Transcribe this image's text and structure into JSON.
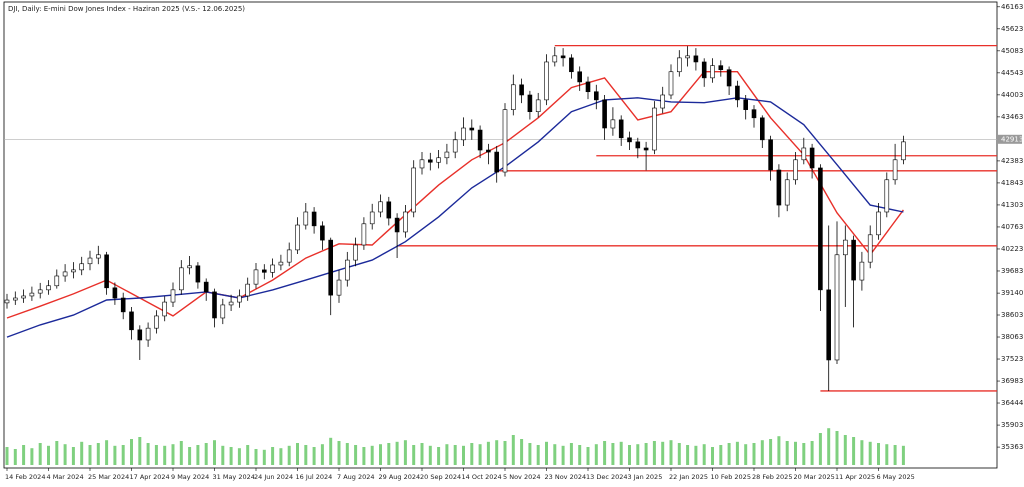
{
  "chart_data": {
    "type": "candlestick",
    "title": "DJI, Daily: E-mini Dow Jones Index - Haziran 2025 (V.S.- 12.06.2025)",
    "categories": [
      "14 Feb 2024",
      null,
      null,
      null,
      null,
      "4 Mar 2024",
      null,
      null,
      null,
      null,
      "25 Mar 2024",
      null,
      null,
      null,
      null,
      "17 Apr 2024",
      null,
      null,
      null,
      null,
      "9 May 2024",
      null,
      null,
      null,
      null,
      "31 May 2024",
      null,
      null,
      null,
      null,
      "24 Jun 2024",
      null,
      null,
      null,
      null,
      "16 Jul 2024",
      null,
      null,
      null,
      null,
      "7 Aug 2024",
      null,
      null,
      null,
      null,
      "29 Aug 2024",
      null,
      null,
      null,
      null,
      "20 Sep 2024",
      null,
      null,
      null,
      null,
      "14 Oct 2024",
      null,
      null,
      null,
      null,
      "5 Nov 2024",
      null,
      null,
      null,
      null,
      "23 Nov 2024",
      null,
      null,
      null,
      null,
      "13 Dec 2024",
      null,
      null,
      null,
      null,
      "3 Jan 2025",
      null,
      null,
      null,
      null,
      "22 Jan 2025",
      null,
      null,
      null,
      null,
      "10 Feb 2025",
      null,
      null,
      null,
      null,
      "28 Feb 2025",
      null,
      null,
      null,
      null,
      "20 Mar 2025",
      null,
      null,
      null,
      null,
      "11 Apr 2025",
      null,
      null,
      null,
      null,
      "6 May 2025",
      null,
      null,
      null
    ],
    "open": [
      38900,
      38970,
      39020,
      39070,
      39140,
      39220,
      39320,
      39560,
      39660,
      39710,
      39860,
      40000,
      40080,
      39270,
      39020,
      38680,
      38240,
      37990,
      38280,
      38580,
      38920,
      39220,
      39760,
      39810,
      39410,
      39170,
      38530,
      38850,
      38920,
      39070,
      39360,
      39710,
      39650,
      39830,
      39900,
      40200,
      40810,
      41130,
      40790,
      40440,
      39090,
      39460,
      39950,
      40320,
      40840,
      41130,
      41380,
      40980,
      40640,
      41130,
      42210,
      42410,
      42350,
      42460,
      42600,
      42900,
      43190,
      43140,
      42650,
      42600,
      42110,
      43640,
      44250,
      44000,
      43590,
      43880,
      44810,
      44960,
      44910,
      44570,
      44320,
      44080,
      43880,
      43190,
      43390,
      42950,
      42850,
      42700,
      42650,
      43680,
      44000,
      44570,
      44910,
      44960,
      44810,
      44420,
      44720,
      44620,
      44220,
      43880,
      43640,
      43440,
      42900,
      42160,
      41300,
      41920,
      42410,
      42700,
      42210,
      39220,
      37500,
      40080,
      40440,
      39460,
      39900,
      40570,
      41130,
      41920,
      42410
    ],
    "high": [
      39120,
      39180,
      39230,
      39300,
      39390,
      39460,
      39720,
      39850,
      39900,
      40030,
      40180,
      40300,
      40150,
      39400,
      39150,
      38800,
      38350,
      38420,
      38720,
      39060,
      39400,
      39950,
      40050,
      39900,
      39500,
      39250,
      39000,
      39100,
      39230,
      39520,
      39880,
      39850,
      39990,
      40080,
      40380,
      41000,
      41350,
      41250,
      40900,
      40500,
      39700,
      40150,
      40500,
      41000,
      41330,
      41560,
      41500,
      41100,
      41300,
      42400,
      42600,
      42580,
      42650,
      42800,
      43100,
      43450,
      43400,
      43250,
      42800,
      42750,
      43800,
      44500,
      44400,
      44100,
      44050,
      45000,
      45180,
      45150,
      45000,
      44700,
      44450,
      44250,
      44000,
      43700,
      43500,
      43100,
      42950,
      42850,
      43850,
      44200,
      44750,
      45100,
      45200,
      45150,
      44900,
      44900,
      44850,
      44700,
      44350,
      44000,
      43750,
      43500,
      43000,
      42300,
      42100,
      42600,
      42950,
      42800,
      42300,
      40800,
      40900,
      40800,
      40550,
      40150,
      40800,
      41350,
      42100,
      42800,
      43000
    ],
    "low": [
      38760,
      38850,
      38900,
      38950,
      39010,
      39100,
      39250,
      39420,
      39500,
      39580,
      39700,
      39850,
      39100,
      38850,
      38500,
      38000,
      37500,
      37820,
      38150,
      38450,
      38800,
      39100,
      39600,
      39250,
      38950,
      38300,
      38380,
      38700,
      38780,
      38950,
      39250,
      39480,
      39520,
      39700,
      39800,
      40100,
      40700,
      40600,
      40200,
      38600,
      38900,
      39300,
      39800,
      40200,
      40700,
      41000,
      40800,
      40000,
      40500,
      41000,
      42050,
      42150,
      42200,
      42300,
      42450,
      42750,
      42900,
      42450,
      42300,
      41850,
      42000,
      43500,
      43800,
      43400,
      43450,
      43750,
      44700,
      44700,
      44400,
      44100,
      43900,
      43650,
      42900,
      43000,
      42750,
      42650,
      42450,
      42150,
      42550,
      43550,
      43900,
      44450,
      44700,
      44600,
      44200,
      44300,
      44450,
      44000,
      43700,
      43400,
      43200,
      42700,
      41900,
      41000,
      41150,
      41800,
      42300,
      41950,
      38700,
      36740,
      37400,
      38800,
      38300,
      39200,
      39750,
      40450,
      41000,
      41800,
      42300
    ],
    "close": [
      38970,
      39020,
      39070,
      39140,
      39220,
      39320,
      39560,
      39660,
      39710,
      39860,
      40000,
      40080,
      39270,
      39020,
      38680,
      38240,
      37990,
      38280,
      38580,
      38920,
      39220,
      39760,
      39810,
      39410,
      39170,
      38530,
      38850,
      38920,
      39070,
      39360,
      39710,
      39650,
      39830,
      39900,
      40200,
      40810,
      41130,
      40790,
      40440,
      39090,
      39460,
      39950,
      40320,
      40840,
      41130,
      41380,
      40980,
      40640,
      41130,
      42210,
      42410,
      42350,
      42460,
      42600,
      42900,
      43190,
      43140,
      42650,
      42600,
      42110,
      43640,
      44250,
      44000,
      43590,
      43880,
      44810,
      44960,
      44910,
      44570,
      44320,
      44080,
      43880,
      43190,
      43390,
      42950,
      42850,
      42700,
      42650,
      43680,
      44000,
      44570,
      44910,
      44960,
      44810,
      44420,
      44720,
      44620,
      44220,
      43880,
      43640,
      43440,
      42900,
      42160,
      41300,
      41920,
      42410,
      42700,
      42210,
      39220,
      37500,
      40080,
      40440,
      39460,
      39900,
      40570,
      41130,
      41920,
      42410,
      42850
    ],
    "up_color": "#ffffff",
    "down_color": "#000000",
    "volume": {
      "color": "#7fd07f",
      "values": [
        45,
        40,
        50,
        42,
        55,
        48,
        60,
        52,
        45,
        58,
        50,
        55,
        62,
        48,
        50,
        65,
        70,
        55,
        50,
        48,
        52,
        60,
        45,
        50,
        55,
        62,
        48,
        45,
        42,
        50,
        40,
        38,
        45,
        42,
        48,
        55,
        50,
        45,
        52,
        68,
        60,
        55,
        50,
        45,
        48,
        52,
        55,
        58,
        62,
        50,
        55,
        48,
        45,
        52,
        50,
        48,
        55,
        52,
        58,
        62,
        60,
        75,
        65,
        55,
        50,
        58,
        52,
        48,
        55,
        50,
        45,
        52,
        60,
        55,
        58,
        50,
        52,
        55,
        60,
        58,
        62,
        55,
        50,
        48,
        52,
        45,
        50,
        55,
        58,
        52,
        55,
        62,
        65,
        72,
        60,
        58,
        55,
        60,
        80,
        92,
        85,
        75,
        70,
        62,
        58,
        55,
        52,
        50,
        48
      ]
    },
    "y2lim": [
      0,
      100
    ],
    "series": [
      {
        "color": "#e8302a",
        "x": [
          0,
          4,
          8,
          12,
          16,
          20,
          24,
          28,
          32,
          36,
          40,
          44,
          48,
          52,
          56,
          60,
          64,
          68,
          72,
          76,
          80,
          84,
          88,
          92,
          96,
          100,
          104,
          108
        ],
        "values": [
          38530,
          38820,
          39120,
          39460,
          39020,
          38580,
          39170,
          39020,
          39460,
          40000,
          40350,
          40320,
          41060,
          41790,
          42410,
          42830,
          43440,
          44180,
          44420,
          43390,
          43590,
          44570,
          44570,
          43440,
          42530,
          41110,
          40080,
          41180
        ]
      },
      {
        "color": "#1c2a9a",
        "x": [
          0,
          4,
          8,
          12,
          16,
          20,
          24,
          28,
          32,
          36,
          40,
          44,
          48,
          52,
          56,
          60,
          64,
          68,
          72,
          76,
          80,
          84,
          88,
          92,
          96,
          100,
          104,
          108
        ],
        "values": [
          38060,
          38360,
          38600,
          38970,
          39020,
          39090,
          39170,
          39020,
          39220,
          39460,
          39710,
          39950,
          40400,
          41010,
          41720,
          42240,
          42850,
          43590,
          43880,
          43930,
          43830,
          43810,
          43930,
          43830,
          43270,
          42290,
          41300,
          41130
        ]
      }
    ],
    "levels": {
      "color": "#e8302a",
      "values": [
        45210,
        42510,
        42140,
        40300,
        36740
      ],
      "from": [
        66,
        71,
        59,
        47,
        98
      ]
    },
    "last_price": 42913,
    "ylim": [
      34850,
      46330
    ],
    "yticks": [
      46163,
      45623,
      45083,
      44543,
      44003,
      43463,
      42383,
      41843,
      41303,
      40763,
      40223,
      39683,
      39140,
      38603,
      38063,
      37523,
      36983,
      36444,
      35903,
      35363
    ]
  }
}
